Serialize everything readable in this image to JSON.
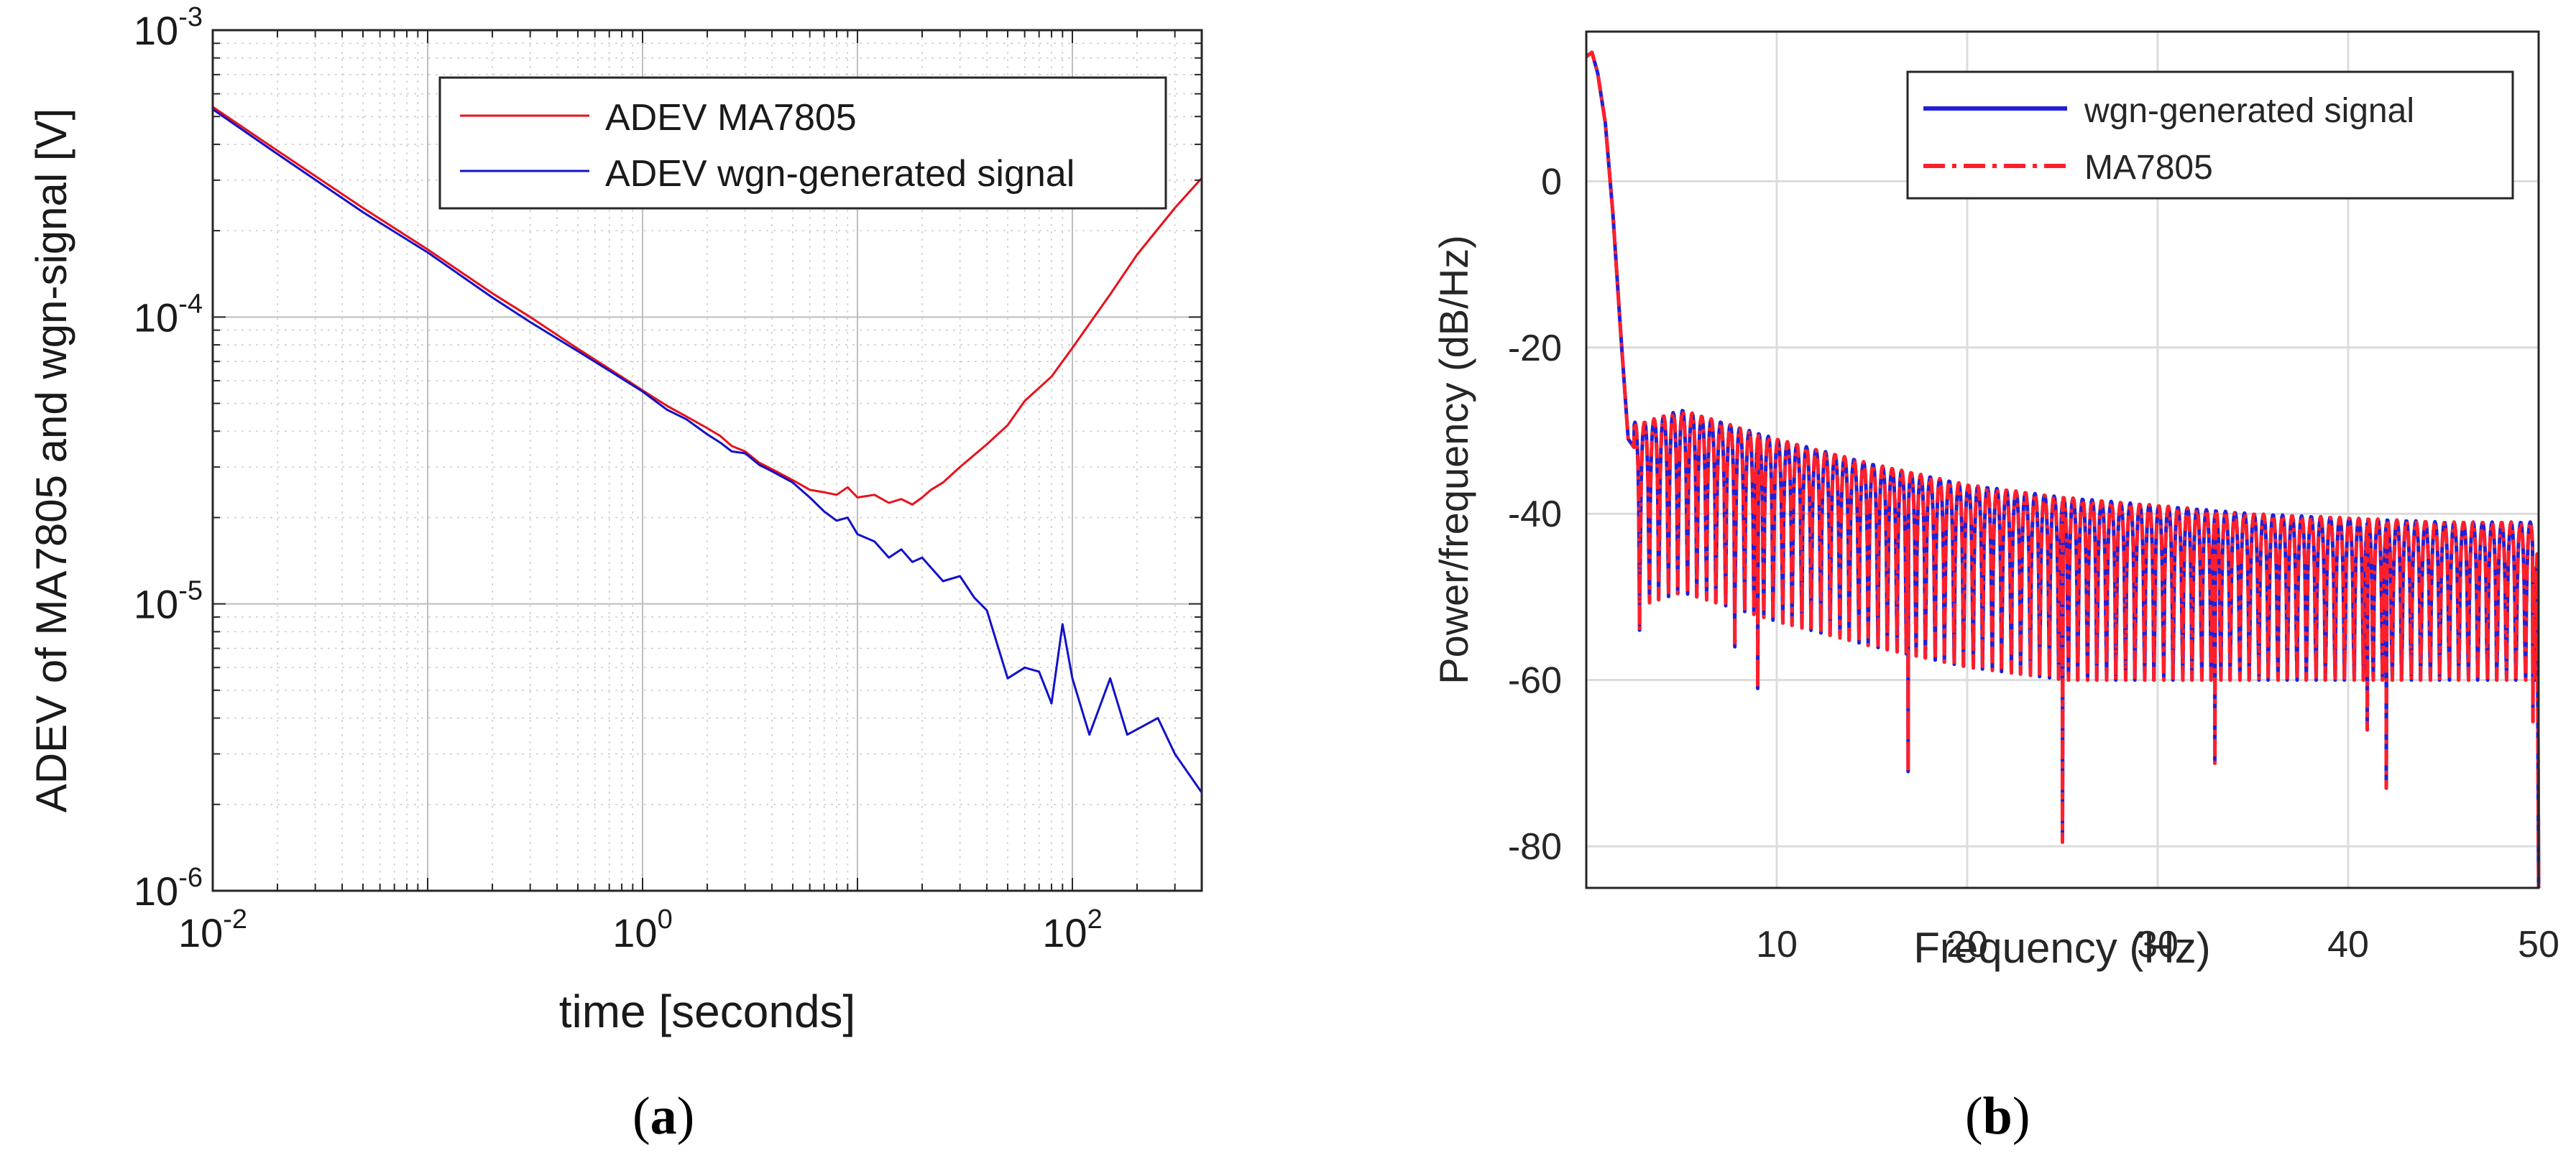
{
  "chart_data": [
    {
      "type": "line",
      "scale": "log-log",
      "panel_label": "a",
      "title": "",
      "xlabel": "time [seconds]",
      "ylabel": "ADEV of MA7805 and wgn-signal [V]",
      "xlim": [
        0.01,
        400
      ],
      "ylim": [
        1e-06,
        0.001
      ],
      "x_tick_labels": [
        {
          "base": "10",
          "exp": "-2",
          "value": 0.01
        },
        {
          "base": "10",
          "exp": "0",
          "value": 1
        },
        {
          "base": "10",
          "exp": "2",
          "value": 100
        }
      ],
      "y_tick_labels": [
        {
          "base": "10",
          "exp": "-6",
          "value": 1e-06
        },
        {
          "base": "10",
          "exp": "-5",
          "value": 1e-05
        },
        {
          "base": "10",
          "exp": "-4",
          "value": 0.0001
        },
        {
          "base": "10",
          "exp": "-3",
          "value": 0.001
        }
      ],
      "grid": true,
      "legend_position": "top-right",
      "series": [
        {
          "name": "ADEV MA7805",
          "color": "#e8111b",
          "points": [
            [
              0.01,
              0.00054
            ],
            [
              0.02,
              0.00038
            ],
            [
              0.05,
              0.00024
            ],
            [
              0.1,
              0.000172
            ],
            [
              0.2,
              0.000121
            ],
            [
              0.3,
              0.0001
            ],
            [
              0.5,
              7.75e-05
            ],
            [
              0.7,
              6.6e-05
            ],
            [
              1,
              5.55e-05
            ],
            [
              1.3,
              4.9e-05
            ],
            [
              1.6,
              4.5e-05
            ],
            [
              2,
              4.1e-05
            ],
            [
              2.3,
              3.85e-05
            ],
            [
              2.6,
              3.55e-05
            ],
            [
              3,
              3.4e-05
            ],
            [
              3.5,
              3.1e-05
            ],
            [
              4,
              2.95e-05
            ],
            [
              5,
              2.7e-05
            ],
            [
              6,
              2.5e-05
            ],
            [
              7,
              2.45e-05
            ],
            [
              8,
              2.4e-05
            ],
            [
              9,
              2.55e-05
            ],
            [
              10,
              2.35e-05
            ],
            [
              12,
              2.4e-05
            ],
            [
              14,
              2.25e-05
            ],
            [
              16,
              2.32e-05
            ],
            [
              18,
              2.22e-05
            ],
            [
              20,
              2.35e-05
            ],
            [
              22,
              2.5e-05
            ],
            [
              25,
              2.65e-05
            ],
            [
              30,
              3e-05
            ],
            [
              40,
              3.6e-05
            ],
            [
              50,
              4.2e-05
            ],
            [
              60,
              5.1e-05
            ],
            [
              80,
              6.2e-05
            ],
            [
              100,
              7.8e-05
            ],
            [
              150,
              0.00012
            ],
            [
              200,
              0.000165
            ],
            [
              300,
              0.00024
            ],
            [
              400,
              0.000305
            ]
          ]
        },
        {
          "name": "ADEV wgn-generated signal",
          "color": "#1212c9",
          "points": [
            [
              0.01,
              0.00053
            ],
            [
              0.02,
              0.00037
            ],
            [
              0.05,
              0.000232
            ],
            [
              0.1,
              0.000168
            ],
            [
              0.2,
              0.000117
            ],
            [
              0.3,
              9.6e-05
            ],
            [
              0.5,
              7.6e-05
            ],
            [
              0.7,
              6.5e-05
            ],
            [
              1,
              5.5e-05
            ],
            [
              1.3,
              4.75e-05
            ],
            [
              1.6,
              4.4e-05
            ],
            [
              2,
              3.9e-05
            ],
            [
              2.3,
              3.65e-05
            ],
            [
              2.6,
              3.4e-05
            ],
            [
              3,
              3.35e-05
            ],
            [
              3.5,
              3.05e-05
            ],
            [
              4,
              2.9e-05
            ],
            [
              5,
              2.65e-05
            ],
            [
              6,
              2.35e-05
            ],
            [
              7,
              2.1e-05
            ],
            [
              8,
              1.95e-05
            ],
            [
              9,
              2e-05
            ],
            [
              10,
              1.75e-05
            ],
            [
              12,
              1.65e-05
            ],
            [
              14,
              1.45e-05
            ],
            [
              16,
              1.55e-05
            ],
            [
              18,
              1.4e-05
            ],
            [
              20,
              1.45e-05
            ],
            [
              25,
              1.2e-05
            ],
            [
              30,
              1.25e-05
            ],
            [
              35,
              1.05e-05
            ],
            [
              40,
              9.5e-06
            ],
            [
              50,
              5.5e-06
            ],
            [
              60,
              6e-06
            ],
            [
              70,
              5.8e-06
            ],
            [
              80,
              4.5e-06
            ],
            [
              90,
              8.5e-06
            ],
            [
              100,
              5.5e-06
            ],
            [
              120,
              3.5e-06
            ],
            [
              150,
              5.5e-06
            ],
            [
              180,
              3.5e-06
            ],
            [
              250,
              4e-06
            ],
            [
              300,
              3e-06
            ],
            [
              400,
              2.2e-06
            ]
          ]
        }
      ]
    },
    {
      "type": "line",
      "panel_label": "b",
      "title": "",
      "xlabel": "Frequency (Hz)",
      "ylabel": "Power/frequency (dB/Hz)",
      "xlim": [
        0,
        50
      ],
      "ylim": [
        -85,
        18
      ],
      "x_ticks": [
        10,
        20,
        30,
        40,
        50
      ],
      "x_tick_labels": [
        "10",
        "20",
        "30",
        "40",
        "50"
      ],
      "y_ticks": [
        0,
        -20,
        -40,
        -60,
        -80
      ],
      "y_tick_labels": [
        "0",
        "-20",
        "-40",
        "-60",
        "-80"
      ],
      "grid": true,
      "legend_position": "top-right",
      "main_lobe": [
        [
          0,
          15
        ],
        [
          0.3,
          15.5
        ],
        [
          0.6,
          13
        ],
        [
          1,
          7
        ],
        [
          1.4,
          -4
        ],
        [
          1.8,
          -18
        ],
        [
          2.2,
          -31
        ],
        [
          2.5,
          -32
        ]
      ],
      "sidelobe_spacing_hz": 0.5,
      "sidelobe_peaks": [
        [
          3,
          -29
        ],
        [
          5,
          -27.5
        ],
        [
          10,
          -31
        ],
        [
          15,
          -34
        ],
        [
          20,
          -36.5
        ],
        [
          25,
          -38
        ],
        [
          30,
          -39
        ],
        [
          35,
          -40
        ],
        [
          40,
          -40.5
        ],
        [
          45,
          -41
        ],
        [
          50,
          -41
        ]
      ],
      "notable_nulls": [
        [
          2.8,
          -54
        ],
        [
          7.8,
          -56
        ],
        [
          9,
          -61
        ],
        [
          16.9,
          -71
        ],
        [
          25,
          -79.5
        ],
        [
          33,
          -70
        ],
        [
          41,
          -66
        ],
        [
          42,
          -73
        ],
        [
          49.7,
          -65
        ],
        [
          50,
          -85
        ]
      ],
      "series": [
        {
          "name": "wgn-generated signal",
          "color": "#2020d8",
          "style": "solid"
        },
        {
          "name": "MA7805",
          "color": "#ff1f2a",
          "style": "dash-dot"
        }
      ]
    }
  ]
}
